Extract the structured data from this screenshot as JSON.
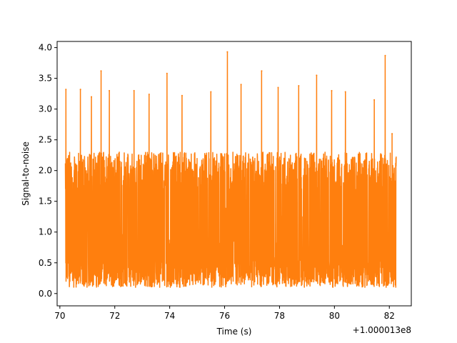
{
  "chart_data": {
    "type": "line",
    "title": "",
    "xlabel": "Time (s)",
    "ylabel": "Signal-to-noise",
    "x_offset_label": "+1.000013e8",
    "xlim": [
      69.9,
      82.8
    ],
    "ylim": [
      -0.2,
      4.1
    ],
    "x_ticks": [
      70,
      72,
      74,
      76,
      78,
      80,
      82
    ],
    "x_tick_labels": [
      "70",
      "72",
      "74",
      "76",
      "78",
      "80",
      "82"
    ],
    "y_ticks": [
      0.0,
      0.5,
      1.0,
      1.5,
      2.0,
      2.5,
      3.0,
      3.5,
      4.0
    ],
    "y_tick_labels": [
      "0.0",
      "0.5",
      "1.0",
      "1.5",
      "2.0",
      "2.5",
      "3.0",
      "3.5",
      "4.0"
    ],
    "grid": false,
    "series": [
      {
        "color": "#ff7f0e",
        "x_start": 70.2,
        "x_end": 82.25,
        "typical_range": [
          0.1,
          2.3
        ],
        "peaks": [
          {
            "x": 70.22,
            "y": 3.32
          },
          {
            "x": 70.75,
            "y": 3.32
          },
          {
            "x": 71.15,
            "y": 3.2
          },
          {
            "x": 71.5,
            "y": 3.62
          },
          {
            "x": 71.8,
            "y": 3.3
          },
          {
            "x": 72.7,
            "y": 3.3
          },
          {
            "x": 73.25,
            "y": 3.24
          },
          {
            "x": 73.9,
            "y": 3.58
          },
          {
            "x": 74.45,
            "y": 3.22
          },
          {
            "x": 75.5,
            "y": 3.28
          },
          {
            "x": 76.1,
            "y": 3.93
          },
          {
            "x": 76.6,
            "y": 3.4
          },
          {
            "x": 77.35,
            "y": 3.62
          },
          {
            "x": 77.95,
            "y": 3.35
          },
          {
            "x": 78.7,
            "y": 3.38
          },
          {
            "x": 79.35,
            "y": 3.55
          },
          {
            "x": 79.9,
            "y": 3.3
          },
          {
            "x": 80.4,
            "y": 3.28
          },
          {
            "x": 81.45,
            "y": 3.15
          },
          {
            "x": 81.85,
            "y": 3.87
          },
          {
            "x": 82.1,
            "y": 2.6
          }
        ]
      }
    ]
  }
}
